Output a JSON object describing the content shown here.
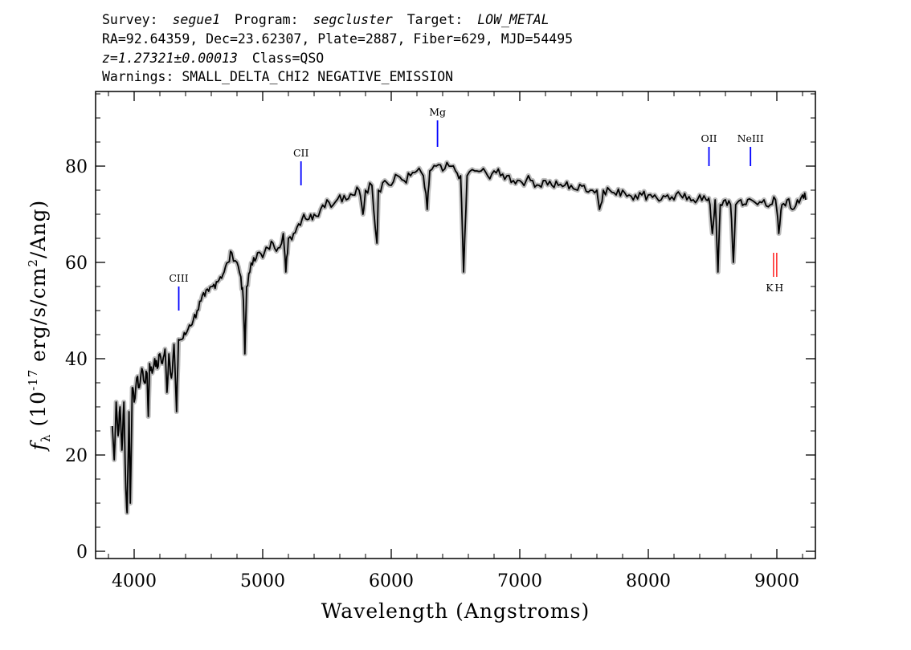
{
  "header": {
    "line1": {
      "survey_label": "Survey:",
      "survey": "segue1",
      "program_label": "Program:",
      "program": "segcluster",
      "target_label": "Target:",
      "target": "LOW_METAL"
    },
    "line2": "RA=92.64359, Dec=23.62307, Plate=2887, Fiber=629, MJD=54495",
    "line3": {
      "z": "z=1.27321±0.00013",
      "class": "Class=QSO"
    },
    "line4": "Warnings: SMALL_DELTA_CHI2 NEGATIVE_EMISSION"
  },
  "chart_data": {
    "type": "line",
    "xlabel": "Wavelength (Angstroms)",
    "ylabel": {
      "f": "f",
      "sub": "λ",
      "pre": " (10",
      "sup1": "-17",
      "mid": " erg/s/cm",
      "sup2": "2",
      "post": "/Ang)"
    },
    "xlim": [
      3700,
      9300
    ],
    "ylim": [
      -1.5,
      95.5
    ],
    "xticks": [
      4000,
      5000,
      6000,
      7000,
      8000,
      9000
    ],
    "yticks": [
      0,
      20,
      40,
      60,
      80
    ],
    "xtick_labels": [
      "4000",
      "5000",
      "6000",
      "7000",
      "8000",
      "9000"
    ],
    "ytick_labels": [
      "0",
      "20",
      "40",
      "60",
      "80"
    ],
    "series": [
      {
        "color": "#000000",
        "error_color": "#bbbbbb",
        "points": [
          [
            3830,
            26
          ],
          [
            3845,
            19
          ],
          [
            3860,
            31
          ],
          [
            3875,
            24
          ],
          [
            3890,
            30
          ],
          [
            3905,
            21
          ],
          [
            3920,
            31
          ],
          [
            3935,
            13
          ],
          [
            3945,
            8
          ],
          [
            3960,
            29
          ],
          [
            3970,
            10
          ],
          [
            3985,
            34
          ],
          [
            4000,
            31
          ],
          [
            4020,
            36
          ],
          [
            4040,
            34
          ],
          [
            4060,
            38
          ],
          [
            4080,
            35
          ],
          [
            4100,
            37
          ],
          [
            4110,
            28
          ],
          [
            4120,
            39
          ],
          [
            4140,
            37
          ],
          [
            4160,
            40
          ],
          [
            4180,
            38
          ],
          [
            4200,
            41
          ],
          [
            4220,
            39
          ],
          [
            4240,
            42
          ],
          [
            4255,
            33
          ],
          [
            4270,
            41
          ],
          [
            4290,
            36
          ],
          [
            4310,
            43
          ],
          [
            4330,
            29
          ],
          [
            4345,
            44
          ],
          [
            4370,
            44
          ],
          [
            4400,
            45
          ],
          [
            4430,
            47
          ],
          [
            4460,
            48
          ],
          [
            4490,
            50
          ],
          [
            4520,
            52
          ],
          [
            4550,
            53
          ],
          [
            4580,
            54
          ],
          [
            4610,
            55
          ],
          [
            4640,
            56
          ],
          [
            4670,
            57
          ],
          [
            4700,
            58
          ],
          [
            4730,
            60
          ],
          [
            4760,
            62
          ],
          [
            4800,
            60
          ],
          [
            4830,
            57
          ],
          [
            4850,
            52
          ],
          [
            4861,
            41
          ],
          [
            4875,
            55
          ],
          [
            4900,
            58
          ],
          [
            4930,
            61
          ],
          [
            4960,
            62
          ],
          [
            5000,
            61
          ],
          [
            5040,
            63
          ],
          [
            5080,
            64
          ],
          [
            5120,
            63
          ],
          [
            5160,
            66
          ],
          [
            5180,
            58
          ],
          [
            5200,
            65
          ],
          [
            5240,
            66
          ],
          [
            5280,
            68
          ],
          [
            5320,
            70
          ],
          [
            5360,
            69
          ],
          [
            5400,
            70
          ],
          [
            5450,
            71
          ],
          [
            5500,
            73
          ],
          [
            5550,
            72
          ],
          [
            5600,
            74
          ],
          [
            5650,
            73
          ],
          [
            5700,
            74
          ],
          [
            5750,
            75
          ],
          [
            5780,
            70
          ],
          [
            5800,
            75
          ],
          [
            5850,
            76
          ],
          [
            5889,
            64
          ],
          [
            5900,
            75
          ],
          [
            5950,
            77
          ],
          [
            6000,
            76
          ],
          [
            6050,
            78
          ],
          [
            6100,
            77
          ],
          [
            6150,
            78
          ],
          [
            6200,
            79
          ],
          [
            6250,
            78
          ],
          [
            6280,
            71
          ],
          [
            6300,
            79
          ],
          [
            6350,
            80
          ],
          [
            6400,
            79
          ],
          [
            6450,
            80
          ],
          [
            6500,
            79
          ],
          [
            6540,
            78
          ],
          [
            6563,
            58
          ],
          [
            6590,
            78
          ],
          [
            6650,
            79
          ],
          [
            6700,
            79
          ],
          [
            6750,
            78
          ],
          [
            6800,
            79
          ],
          [
            6850,
            78
          ],
          [
            6900,
            78
          ],
          [
            6950,
            77
          ],
          [
            7000,
            77
          ],
          [
            7050,
            77
          ],
          [
            7100,
            77
          ],
          [
            7150,
            76
          ],
          [
            7200,
            77
          ],
          [
            7250,
            76
          ],
          [
            7300,
            76
          ],
          [
            7350,
            76
          ],
          [
            7400,
            76
          ],
          [
            7450,
            75
          ],
          [
            7500,
            76
          ],
          [
            7550,
            75
          ],
          [
            7600,
            75
          ],
          [
            7620,
            71
          ],
          [
            7650,
            75
          ],
          [
            7700,
            75
          ],
          [
            7750,
            74
          ],
          [
            7800,
            75
          ],
          [
            7850,
            74
          ],
          [
            7900,
            74
          ],
          [
            7950,
            74
          ],
          [
            8000,
            74
          ],
          [
            8050,
            74
          ],
          [
            8100,
            73
          ],
          [
            8150,
            74
          ],
          [
            8200,
            73
          ],
          [
            8250,
            74
          ],
          [
            8300,
            73
          ],
          [
            8350,
            73
          ],
          [
            8400,
            74
          ],
          [
            8450,
            73
          ],
          [
            8480,
            72
          ],
          [
            8498,
            66
          ],
          [
            8520,
            73
          ],
          [
            8542,
            58
          ],
          [
            8560,
            72
          ],
          [
            8600,
            73
          ],
          [
            8640,
            72
          ],
          [
            8662,
            60
          ],
          [
            8680,
            72
          ],
          [
            8720,
            73
          ],
          [
            8760,
            72
          ],
          [
            8800,
            73
          ],
          [
            8850,
            72
          ],
          [
            8900,
            73
          ],
          [
            8950,
            72
          ],
          [
            8990,
            73
          ],
          [
            9015,
            66
          ],
          [
            9040,
            72
          ],
          [
            9080,
            73
          ],
          [
            9120,
            71
          ],
          [
            9160,
            73
          ],
          [
            9200,
            74
          ],
          [
            9225,
            73
          ]
        ]
      }
    ],
    "line_markers": [
      {
        "label": "CIII",
        "x": 4347,
        "y_bottom": 50,
        "y_top": 55,
        "color": "#0000ff",
        "label_above": true
      },
      {
        "label": "CII",
        "x": 5298,
        "y_bottom": 76,
        "y_top": 81,
        "color": "#0000ff",
        "label_above": true
      },
      {
        "label": "Mg",
        "x": 6360,
        "y_bottom": 84,
        "y_top": 89.5,
        "color": "#0000ff",
        "label_above": true
      },
      {
        "label": "OII",
        "x": 8472,
        "y_bottom": 80,
        "y_top": 84,
        "color": "#0000ff",
        "label_above": true
      },
      {
        "label": "NeIII",
        "x": 8795,
        "y_bottom": 80,
        "y_top": 84,
        "color": "#0000ff",
        "label_above": true
      },
      {
        "label": "K",
        "x": 8943,
        "y_bottom": 57,
        "y_top": 62,
        "color": "#ff0000",
        "label_above": false
      },
      {
        "label": "H",
        "x": 9018,
        "y_bottom": 57,
        "y_top": 62,
        "color": "#ff0000",
        "label_above": false
      }
    ]
  }
}
